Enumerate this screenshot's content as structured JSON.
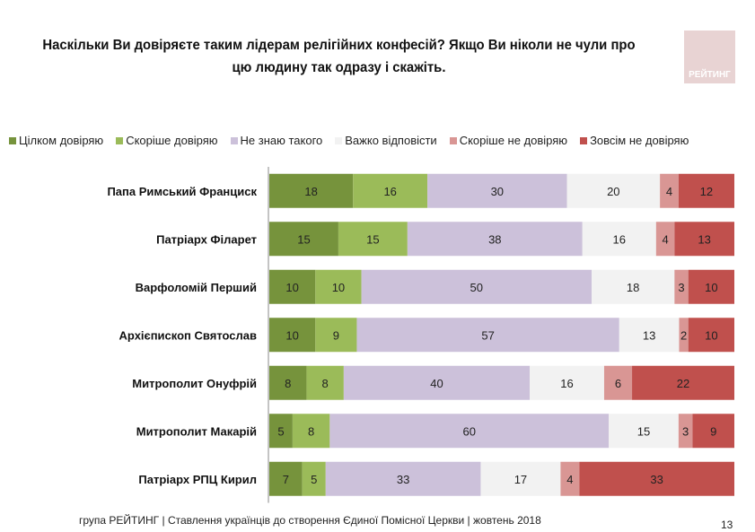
{
  "title": "Наскільки Ви довіряєте таким лідерам релігійних конфесій? Якщо Ви ніколи не чули про цю людину так одразу і скажіть.",
  "logo_text": "РЕЙТИНГ",
  "footer": "група РЕЙТИНГ | Ставлення українців до створення Єдиної Помісної Церкви | жовтень 2018",
  "page_number": "13",
  "chart_data": {
    "type": "bar",
    "orientation": "horizontal",
    "stacked": true,
    "legend_position": "top",
    "categories": [
      "Папа Римський  Франциск",
      "Патріарх Філарет",
      "Варфоломій Перший",
      "Архієпископ Святослав",
      "Митрополит Онуфрій",
      "Митрополит Макарій",
      "Патріарх РПЦ Кирил"
    ],
    "series": [
      {
        "name": "Цілком довіряю",
        "color": "#76933C",
        "values": [
          18,
          15,
          10,
          10,
          8,
          5,
          7
        ]
      },
      {
        "name": "Скоріше довіряю",
        "color": "#9BBB59",
        "values": [
          16,
          15,
          10,
          9,
          8,
          8,
          5
        ]
      },
      {
        "name": "Не знаю такого",
        "color": "#CCC1DA",
        "values": [
          30,
          38,
          50,
          57,
          40,
          60,
          33
        ]
      },
      {
        "name": "Важко відповісти",
        "color": "#F2F2F2",
        "values": [
          20,
          16,
          18,
          13,
          16,
          15,
          17
        ]
      },
      {
        "name": "Скоріше не довіряю",
        "color": "#D99694",
        "values": [
          4,
          4,
          3,
          2,
          6,
          3,
          4
        ]
      },
      {
        "name": "Зовсім не довіряю",
        "color": "#C0504D",
        "values": [
          12,
          13,
          10,
          10,
          22,
          9,
          33
        ]
      }
    ]
  }
}
